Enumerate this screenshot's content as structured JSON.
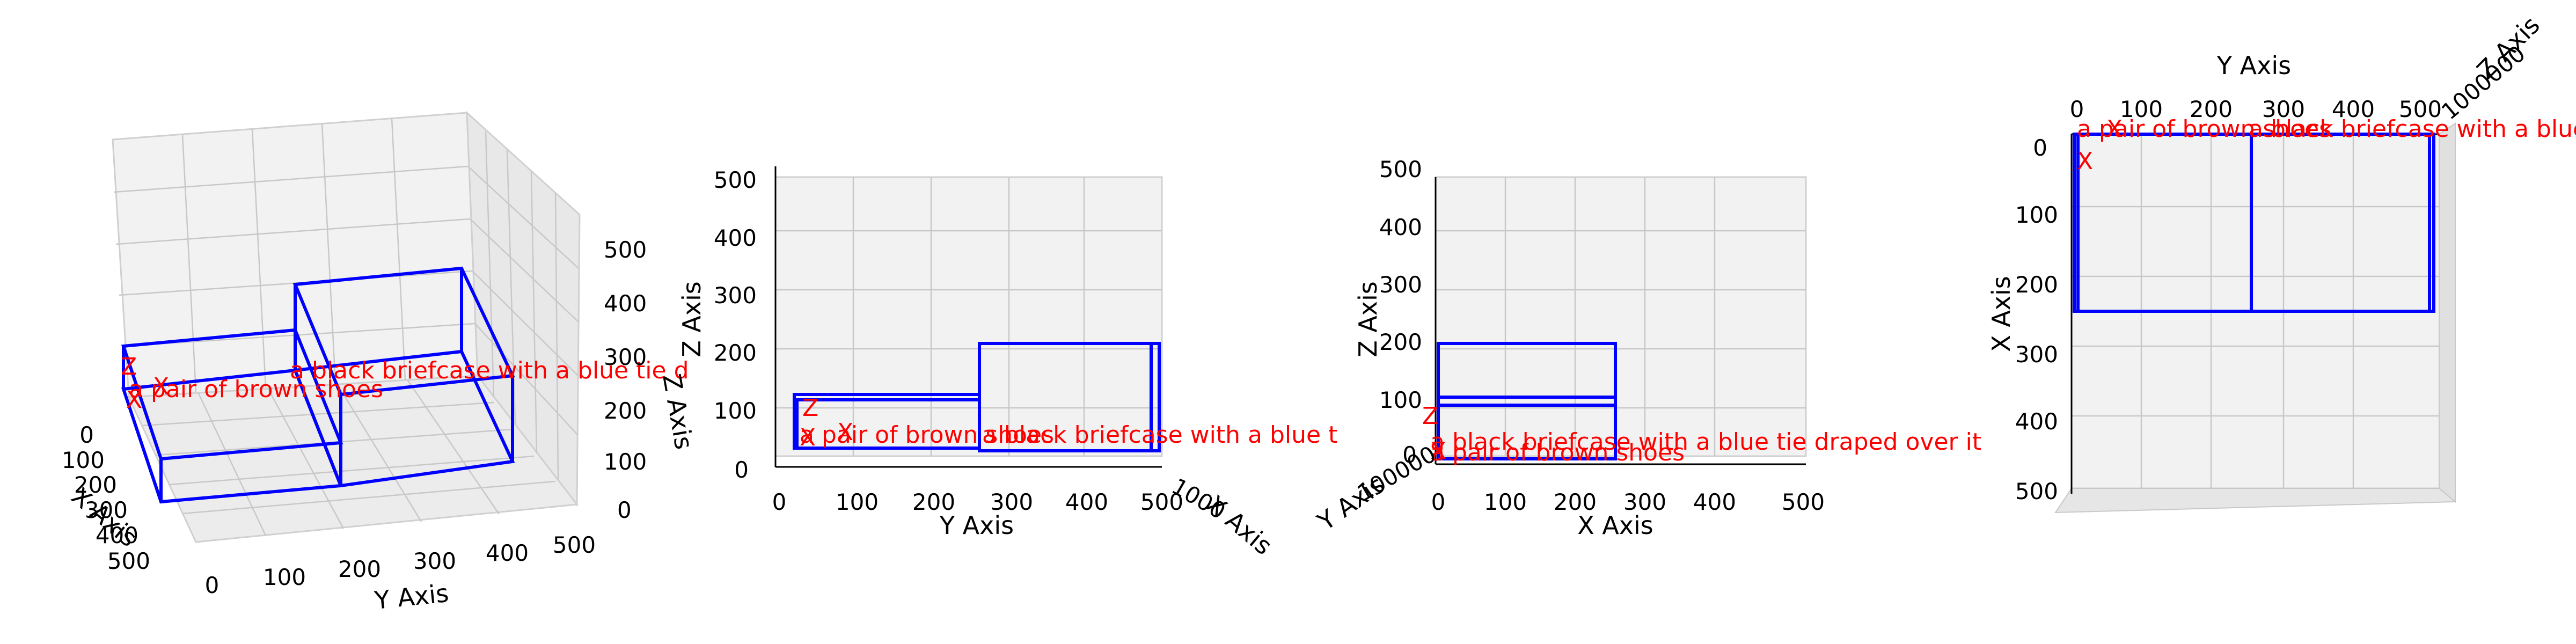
{
  "chart_data": [
    {
      "type": "3d-wireframe",
      "view": "perspective",
      "xlabel": "X Axis",
      "ylabel": "Y Axis",
      "zlabel": "Z Axis",
      "xticks": [
        "0",
        "100",
        "200",
        "300",
        "400",
        "500"
      ],
      "yticks": [
        "0",
        "100",
        "200",
        "300",
        "400",
        "500"
      ],
      "zticks": [
        "0",
        "100",
        "200",
        "300",
        "400",
        "500"
      ],
      "xlim": [
        0,
        500
      ],
      "ylim": [
        0,
        500
      ],
      "zlim": [
        0,
        500
      ],
      "grid": true
    },
    {
      "type": "3d-wireframe",
      "view": "front (Y-Z)",
      "xlabel": "X Axis",
      "ylabel": "Y Axis",
      "zlabel": "Z Axis",
      "yticks": [
        "0",
        "100",
        "200",
        "300",
        "400",
        "500"
      ],
      "zticks": [
        "0",
        "100",
        "200",
        "300",
        "400",
        "500"
      ],
      "xticks_overlapped": "1000",
      "grid": true
    },
    {
      "type": "3d-wireframe",
      "view": "side (X-Z)",
      "xlabel": "X Axis",
      "ylabel": "Y Axis",
      "zlabel": "Z Axis",
      "xticks": [
        "0",
        "100",
        "200",
        "300",
        "400",
        "500"
      ],
      "zticks": [
        "0",
        "100",
        "200",
        "300",
        "400",
        "500"
      ],
      "yticks_overlapped": "100000",
      "grid": true
    },
    {
      "type": "3d-wireframe",
      "view": "top (X-Y)",
      "xlabel": "X Axis",
      "ylabel": "Y Axis",
      "zlabel": "Z Axis",
      "xticks": [
        "0",
        "100",
        "200",
        "300",
        "400",
        "500"
      ],
      "yticks": [
        "0",
        "100",
        "200",
        "300",
        "400",
        "500"
      ],
      "zticks_overlapped": "1000000",
      "grid": true
    }
  ],
  "objects": [
    {
      "label": "a pair of brown shoes",
      "box": {
        "x": [
          0,
          260
        ],
        "y": [
          0,
          260
        ],
        "z": [
          0,
          110
        ]
      },
      "marker_x": [
        30,
        20,
        0
      ]
    },
    {
      "label": "a black briefcase with a blue tie draped over it",
      "box": {
        "x": [
          0,
          260
        ],
        "y": [
          260,
          540
        ],
        "z": [
          0,
          210
        ]
      },
      "marker_x": [
        60,
        80,
        0
      ]
    }
  ],
  "colors": {
    "box": "#0000ff",
    "label": "#ff0000",
    "axis_x_marker": "#008000",
    "grid": "#b0b0b0",
    "pane": "#f2f2f2"
  },
  "panel1": {
    "label_a": "a pair of brown shoes",
    "label_b": "a black briefcase with a blue tie d"
  },
  "panel2": {
    "label_a": "a pair of brown shoes",
    "label_b": "a black briefcase with a blue t"
  },
  "panel3": {
    "label_a": "a pair of brown shoes",
    "label_b": "a black briefcase with a blue tie draped over it"
  },
  "panel4": {
    "label_a": "a pair of brown shoes",
    "label_b": "a black briefcase with a blue"
  }
}
